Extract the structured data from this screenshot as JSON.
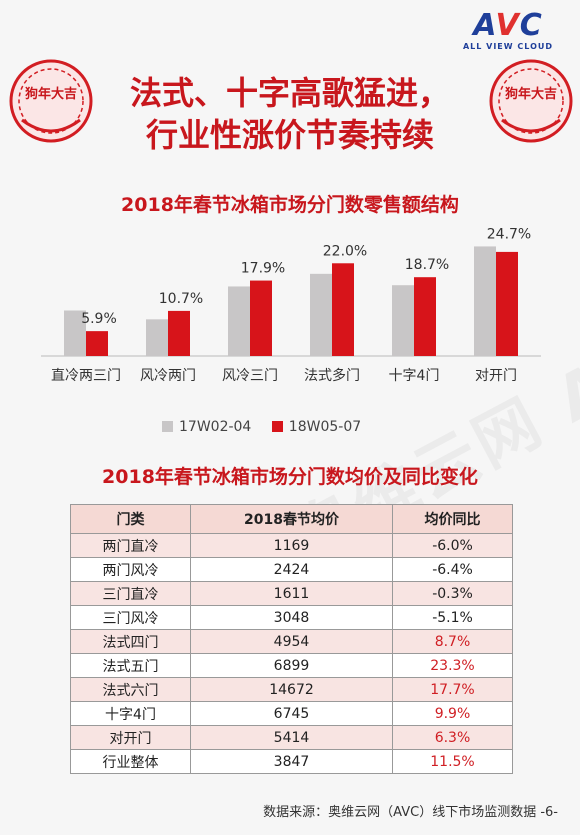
{
  "logo": {
    "mark_a": "A",
    "mark_v": "V",
    "mark_c": "C",
    "sub": "ALL VIEW CLOUD"
  },
  "seal_text": "狗年大吉",
  "headline": {
    "line1": "法式、十字高歌猛进，",
    "line2": "行业性涨价节奏持续"
  },
  "colors": {
    "title_red": "#c8171d",
    "bar_gray": "#c8c6c7",
    "bar_red": "#d7141a",
    "negative_text": "#222222",
    "positive_text": "#d01f24"
  },
  "watermark": "AVC 奥维云网 ALL VIEW CLOUD",
  "chart_data": {
    "type": "bar",
    "title": "2018年春节冰箱市场分门数零售额结构",
    "categories": [
      "直冷两三门",
      "风冷两门",
      "风冷三门",
      "法式多门",
      "十字4门",
      "对开门"
    ],
    "series": [
      {
        "name": "17W02-04",
        "values": [
          10.8,
          8.7,
          16.5,
          19.5,
          16.8,
          26.0
        ],
        "color": "#c8c6c7"
      },
      {
        "name": "18W05-07",
        "values": [
          5.9,
          10.7,
          17.9,
          22.0,
          18.7,
          24.7
        ],
        "color": "#d7141a"
      }
    ],
    "data_labels": [
      "5.9%",
      "10.7%",
      "17.9%",
      "22.0%",
      "18.7%",
      "24.7%"
    ],
    "ylim": [
      0,
      28
    ],
    "grid": false,
    "legend_position": "bottom"
  },
  "table": {
    "title": "2018年春节冰箱市场分门数均价及同比变化",
    "headers": [
      "门类",
      "2018春节均价",
      "均价同比"
    ],
    "rows": [
      [
        "两门直冷",
        "1169",
        "-6.0%"
      ],
      [
        "两门风冷",
        "2424",
        "-6.4%"
      ],
      [
        "三门直冷",
        "1611",
        "-0.3%"
      ],
      [
        "三门风冷",
        "3048",
        "-5.1%"
      ],
      [
        "法式四门",
        "4954",
        "8.7%"
      ],
      [
        "法式五门",
        "6899",
        "23.3%"
      ],
      [
        "法式六门",
        "14672",
        "17.7%"
      ],
      [
        "十字4门",
        "6745",
        "9.9%"
      ],
      [
        "对开门",
        "5414",
        "6.3%"
      ],
      [
        "行业整体",
        "3847",
        "11.5%"
      ]
    ]
  },
  "source": "数据来源：奥维云网（AVC）线下市场监测数据 -6-"
}
